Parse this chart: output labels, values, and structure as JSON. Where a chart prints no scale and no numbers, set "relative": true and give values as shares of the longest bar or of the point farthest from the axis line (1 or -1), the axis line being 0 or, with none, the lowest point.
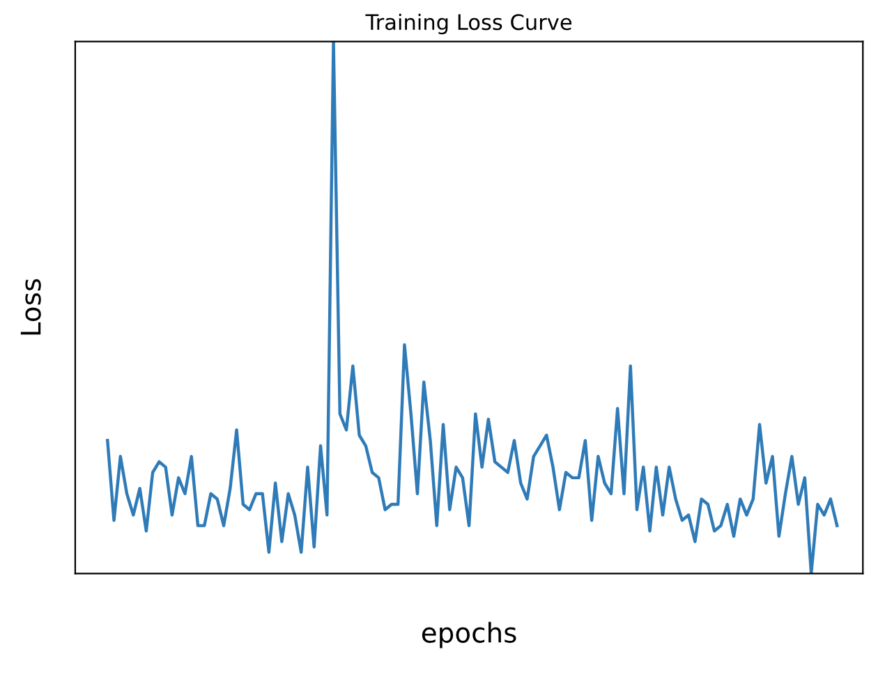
{
  "chart_data": {
    "type": "line",
    "title": "Training Loss Curve",
    "xlabel": "epochs",
    "ylabel": "Loss",
    "relative": true,
    "tick_labels": false,
    "grid": false,
    "categories": [
      null,
      null,
      null,
      null,
      null,
      null,
      null,
      null,
      null,
      null,
      null,
      null,
      null,
      null,
      null,
      null,
      null,
      null,
      null,
      null,
      null,
      null,
      null,
      null,
      null,
      null,
      null,
      null,
      null,
      null,
      null,
      null,
      null,
      null,
      null,
      null,
      null,
      null,
      null,
      null,
      null,
      null,
      null,
      null,
      null,
      null,
      null,
      null,
      null,
      null,
      null,
      null,
      null,
      null,
      null,
      null,
      null,
      null,
      null,
      null,
      null,
      null,
      null,
      null,
      null,
      null,
      null,
      null,
      null,
      null,
      null,
      null,
      null,
      null,
      null,
      null,
      null,
      null,
      null,
      null,
      null,
      null,
      null,
      null,
      null,
      null,
      null,
      null,
      null,
      null,
      null,
      null,
      null,
      null,
      null,
      null,
      null,
      null,
      null,
      null,
      null,
      null,
      null,
      null,
      null,
      null,
      null,
      null,
      null,
      null,
      null,
      null,
      null,
      null
    ],
    "series": [
      {
        "color": "#2f7bb8",
        "values": [
          0.25,
          0.1,
          0.22,
          0.15,
          0.11,
          0.16,
          0.08,
          0.19,
          0.21,
          0.2,
          0.11,
          0.18,
          0.15,
          0.22,
          0.09,
          0.09,
          0.15,
          0.14,
          0.09,
          0.16,
          0.27,
          0.13,
          0.12,
          0.15,
          0.15,
          0.04,
          0.17,
          0.06,
          0.15,
          0.11,
          0.04,
          0.2,
          0.05,
          0.24,
          0.11,
          1,
          0.3,
          0.27,
          0.39,
          0.26,
          0.24,
          0.19,
          0.18,
          0.12,
          0.13,
          0.13,
          0.43,
          0.3,
          0.15,
          0.36,
          0.25,
          0.09,
          0.28,
          0.12,
          0.2,
          0.18,
          0.09,
          0.3,
          0.2,
          0.29,
          0.21,
          0.2,
          0.19,
          0.25,
          0.17,
          0.14,
          0.22,
          0.24,
          0.26,
          0.2,
          0.12,
          0.19,
          0.18,
          0.18,
          0.25,
          0.1,
          0.22,
          0.17,
          0.15,
          0.31,
          0.15,
          0.39,
          0.12,
          0.2,
          0.08,
          0.2,
          0.11,
          0.2,
          0.14,
          0.1,
          0.11,
          0.06,
          0.14,
          0.13,
          0.08,
          0.09,
          0.13,
          0.07,
          0.14,
          0.11,
          0.14,
          0.28,
          0.17,
          0.22,
          0.07,
          0.15,
          0.22,
          0.13,
          0.18,
          0,
          0.13,
          0.11,
          0.14,
          0.09
        ]
      }
    ]
  }
}
